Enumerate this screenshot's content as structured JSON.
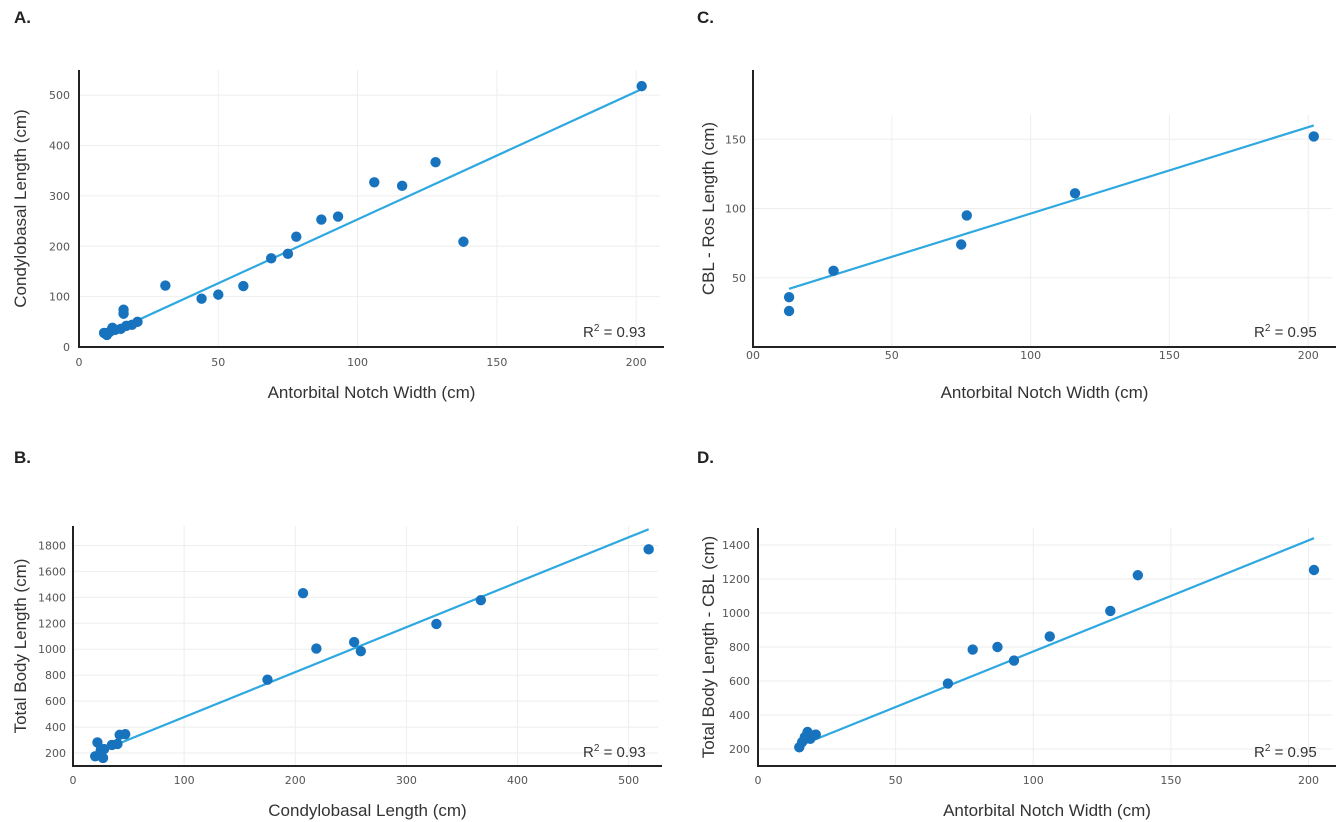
{
  "chart_data": [
    {
      "panel": "A.",
      "type": "scatter",
      "xlabel": "Antorbital Notch Width (cm)",
      "ylabel": "Condylobasal Length (cm)",
      "xlim": [
        0,
        210
      ],
      "ylim": [
        0,
        550
      ],
      "xticks": [
        0,
        50,
        100,
        150,
        200
      ],
      "yticks": [
        0,
        100,
        200,
        300,
        400,
        500
      ],
      "r2": "0.93",
      "fit_line": {
        "x": [
          8,
          202
        ],
        "y": [
          20,
          512
        ]
      },
      "points": [
        [
          202,
          518
        ],
        [
          128,
          367
        ],
        [
          116,
          320
        ],
        [
          106,
          327
        ],
        [
          93,
          259
        ],
        [
          87,
          253
        ],
        [
          78,
          219
        ],
        [
          75,
          185
        ],
        [
          69,
          176
        ],
        [
          59,
          121
        ],
        [
          50,
          104
        ],
        [
          44,
          96
        ],
        [
          31,
          122
        ],
        [
          138,
          209
        ],
        [
          16,
          74
        ],
        [
          16,
          66
        ],
        [
          21,
          50
        ],
        [
          19,
          44
        ],
        [
          17,
          42
        ],
        [
          15,
          36
        ],
        [
          13,
          34
        ],
        [
          12,
          38
        ],
        [
          11,
          30
        ],
        [
          9,
          28
        ],
        [
          10,
          24
        ]
      ]
    },
    {
      "panel": "B.",
      "type": "scatter",
      "xlabel": "Condylobasal Length (cm)",
      "ylabel": "Total Body Length (cm)",
      "xlim": [
        0,
        530
      ],
      "ylim": [
        100,
        1950
      ],
      "xticks": [
        0,
        100,
        200,
        300,
        400,
        500
      ],
      "yticks": [
        200,
        400,
        600,
        800,
        1000,
        1200,
        1400,
        1600,
        1800
      ],
      "r2": "0.93",
      "fit_line": {
        "x": [
          20,
          518
        ],
        "y": [
          200,
          1925
        ]
      },
      "points": [
        [
          518,
          1770
        ],
        [
          367,
          1378
        ],
        [
          327,
          1195
        ],
        [
          259,
          985
        ],
        [
          253,
          1055
        ],
        [
          219,
          1005
        ],
        [
          207,
          1432
        ],
        [
          175,
          765
        ],
        [
          47,
          345
        ],
        [
          42,
          340
        ],
        [
          40,
          270
        ],
        [
          35,
          262
        ],
        [
          28,
          230
        ],
        [
          25,
          222
        ],
        [
          22,
          282
        ],
        [
          20,
          175
        ],
        [
          27,
          162
        ]
      ]
    },
    {
      "panel": "C.",
      "type": "scatter",
      "xlabel": "Antorbital Notch Width (cm)",
      "ylabel": "CBL - Ros Length (cm)",
      "xlim": [
        0,
        210
      ],
      "ylim": [
        0,
        200
      ],
      "xticks": [
        0,
        50,
        100,
        150,
        200
      ],
      "xtick_labels": [
        "00",
        "50",
        "100",
        "150",
        "200"
      ],
      "yticks": [
        50,
        100,
        150
      ],
      "r2": "0.95",
      "fit_line": {
        "x": [
          13,
          202
        ],
        "y": [
          42,
          160
        ]
      },
      "points": [
        [
          202,
          152
        ],
        [
          116,
          111
        ],
        [
          77,
          95
        ],
        [
          75,
          74
        ],
        [
          29,
          55
        ],
        [
          13,
          36
        ],
        [
          13,
          26
        ]
      ]
    },
    {
      "panel": "D.",
      "type": "scatter",
      "xlabel": "Antorbital Notch Width (cm)",
      "ylabel": "Total Body Length - CBL (cm)",
      "xlim": [
        0,
        210
      ],
      "ylim": [
        100,
        1500
      ],
      "xticks": [
        0,
        50,
        100,
        150,
        200
      ],
      "yticks": [
        200,
        400,
        600,
        800,
        1000,
        1200,
        1400
      ],
      "r2": "0.95",
      "fit_line": {
        "x": [
          16,
          202
        ],
        "y": [
          225,
          1440
        ]
      },
      "points": [
        [
          202,
          1253
        ],
        [
          138,
          1222
        ],
        [
          128,
          1012
        ],
        [
          106,
          862
        ],
        [
          93,
          720
        ],
        [
          87,
          800
        ],
        [
          78,
          785
        ],
        [
          69,
          585
        ],
        [
          21,
          285
        ],
        [
          19,
          260
        ],
        [
          18,
          300
        ],
        [
          17,
          270
        ],
        [
          16,
          240
        ],
        [
          15,
          210
        ]
      ]
    }
  ]
}
